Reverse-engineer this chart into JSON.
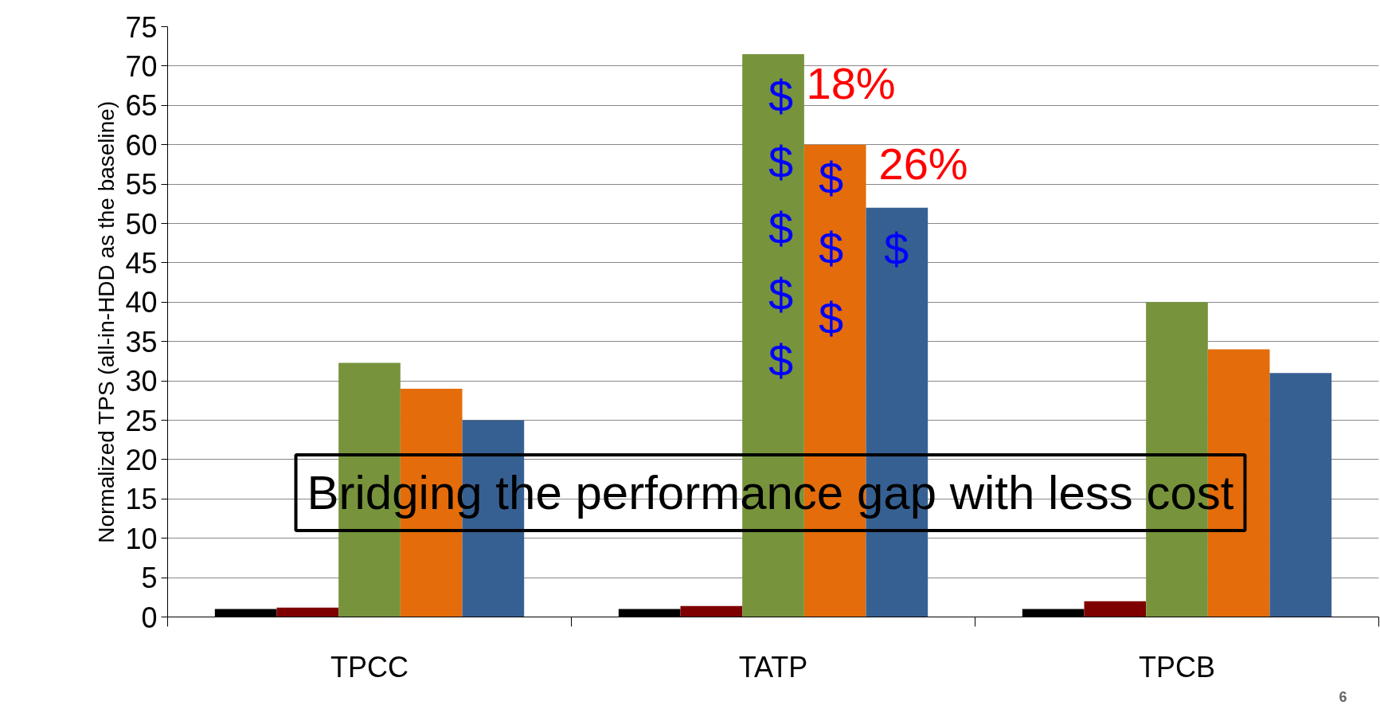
{
  "chart_data": {
    "type": "bar",
    "categories": [
      "TPCC",
      "TATP",
      "TPCB"
    ],
    "series": [
      {
        "color": "#000000",
        "values": [
          1,
          1,
          1
        ]
      },
      {
        "color": "#7f0000",
        "values": [
          1.2,
          1.4,
          2
        ]
      },
      {
        "color": "#77933c",
        "values": [
          32.3,
          71.5,
          40
        ]
      },
      {
        "color": "#e46c0a",
        "values": [
          29,
          60,
          34
        ]
      },
      {
        "color": "#376092",
        "values": [
          25,
          52,
          31
        ]
      }
    ],
    "ylabel": "Normalized TPS (all-in-HDD as the baseline)",
    "ylim": [
      0,
      75
    ],
    "yticks": [
      0,
      5,
      10,
      15,
      20,
      25,
      30,
      35,
      40,
      45,
      50,
      55,
      60,
      65,
      70,
      75
    ],
    "grid": "y",
    "annotations": [
      "$\n$\n$\n$\n$",
      "$\n$\n$",
      "$",
      "18%",
      "26%",
      "Bridging the performance gap with less cost",
      "6"
    ]
  }
}
